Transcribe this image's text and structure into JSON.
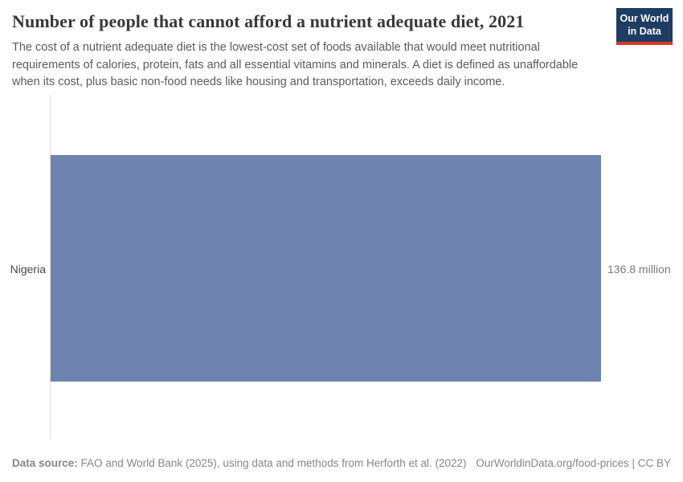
{
  "header": {
    "title": "Number of people that cannot afford a nutrient adequate diet, 2021",
    "subtitle": "The cost of a nutrient adequate diet is the lowest-cost set of foods available that would meet nutritional requirements of calories, protein, fats and all essential vitamins and minerals. A diet is defined as unaffordable when its cost, plus basic non-food needs like housing and transportation, exceeds daily income.",
    "logo": {
      "line1": "Our World",
      "line2": "in Data",
      "bg_color": "#1d3d63",
      "accent_color": "#e0362c"
    }
  },
  "chart_data": {
    "type": "bar",
    "orientation": "horizontal",
    "title": "Number of people that cannot afford a nutrient adequate diet, 2021",
    "categories": [
      "Nigeria"
    ],
    "values": [
      136.8
    ],
    "value_labels": [
      "136.8 million"
    ],
    "unit": "million",
    "x_max": 136.8,
    "grid": false,
    "legend": "none",
    "bar_color": "#6e84ae",
    "axis_color": "#dddddd"
  },
  "footer": {
    "datasource_label": "Data source:",
    "datasource_text": " FAO and World Bank (2025), using data and methods from Herforth et al. (2022)",
    "link_text": "OurWorldinData.org/food-prices | CC BY"
  }
}
